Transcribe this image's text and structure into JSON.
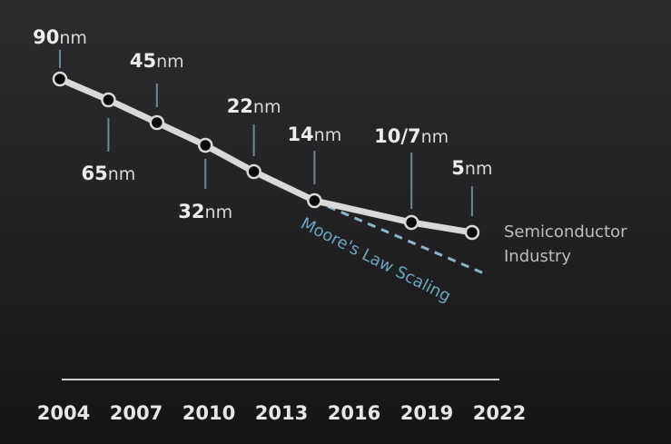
{
  "chart_data": {
    "type": "line",
    "title": "",
    "xlabel": "",
    "ylabel": "",
    "x_ticks": [
      "2004",
      "2007",
      "2010",
      "2013",
      "2016",
      "2019",
      "2022"
    ],
    "xlim": [
      2004,
      2022
    ],
    "grid": false,
    "series": [
      {
        "name": "Semiconductor Industry",
        "name_lines": [
          "Semiconductor",
          "Industry"
        ],
        "color": "#d9d9d9",
        "style": "solid",
        "points": [
          {
            "year": 2004,
            "node": "90",
            "unit": "nm",
            "label_side": "above"
          },
          {
            "year": 2006,
            "node": "65",
            "unit": "nm",
            "label_side": "below"
          },
          {
            "year": 2008,
            "node": "45",
            "unit": "nm",
            "label_side": "above"
          },
          {
            "year": 2010,
            "node": "32",
            "unit": "nm",
            "label_side": "below"
          },
          {
            "year": 2012,
            "node": "22",
            "unit": "nm",
            "label_side": "above"
          },
          {
            "year": 2014.5,
            "node": "14",
            "unit": "nm",
            "label_side": "above"
          },
          {
            "year": 2018.5,
            "node": "10/7",
            "unit": "nm",
            "label_side": "above"
          },
          {
            "year": 2021,
            "node": "5",
            "unit": "nm",
            "label_side": "above"
          }
        ]
      },
      {
        "name": "Moore's Law Scaling",
        "color": "#6aa6bd",
        "style": "dashed"
      }
    ]
  }
}
